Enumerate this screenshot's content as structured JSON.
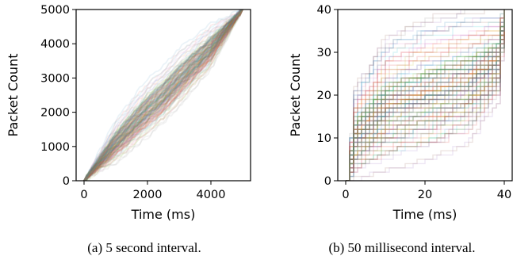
{
  "chart_data": [
    {
      "type": "line",
      "description_caption": "(a) 5 second interval.",
      "xlabel": "Time (ms)",
      "ylabel": "Packet Count",
      "xlim": [
        -250,
        5250
      ],
      "ylim": [
        0,
        5000
      ],
      "xticks": [
        0,
        2000,
        4000
      ],
      "yticks": [
        0,
        1000,
        2000,
        3000,
        4000,
        5000
      ],
      "envelope": {
        "x": [
          0,
          1000,
          2000,
          2500,
          3000,
          4000,
          5000
        ],
        "upper": [
          0,
          1800,
          3000,
          3400,
          3900,
          4600,
          5000
        ],
        "lower": [
          0,
          450,
          1200,
          1600,
          2100,
          3200,
          5000
        ]
      },
      "series_style": "many semi-transparent multicolored cumulative traces",
      "grid": false
    },
    {
      "type": "line",
      "description_caption": "(b) 50 millisecond interval.",
      "xlabel": "Time (ms)",
      "ylabel": "Packet Count",
      "xlim": [
        -2,
        42
      ],
      "ylim": [
        0,
        40
      ],
      "xticks": [
        0,
        20,
        40
      ],
      "yticks": [
        0,
        10,
        20,
        30,
        40
      ],
      "envelope": {
        "x": [
          0,
          2,
          10,
          20,
          30,
          38,
          40
        ],
        "upper": [
          0,
          22,
          34,
          38,
          40,
          40,
          40
        ],
        "lower": [
          0,
          0,
          2,
          4,
          8,
          18,
          40
        ]
      },
      "series_style": "many semi-transparent multicolored step traces",
      "grid": false
    }
  ],
  "captions": {
    "a": "(a) 5 second interval.",
    "b": "(b) 50 millisecond interval."
  },
  "labels": {
    "xlabel": "Time (ms)",
    "ylabel": "Packet Count"
  },
  "tick_text": {
    "a_x": [
      "0",
      "2000",
      "4000"
    ],
    "a_y": [
      "0",
      "1000",
      "2000",
      "3000",
      "4000",
      "5000"
    ],
    "b_x": [
      "0",
      "20",
      "40"
    ],
    "b_y": [
      "0",
      "10",
      "20",
      "30",
      "40"
    ]
  },
  "colors": {
    "palette": [
      "#1f77b4",
      "#ff7f0e",
      "#2ca02c",
      "#d62728",
      "#9467bd",
      "#8c564b",
      "#e377c2",
      "#7f7f7f",
      "#bcbd22",
      "#17becf"
    ]
  }
}
